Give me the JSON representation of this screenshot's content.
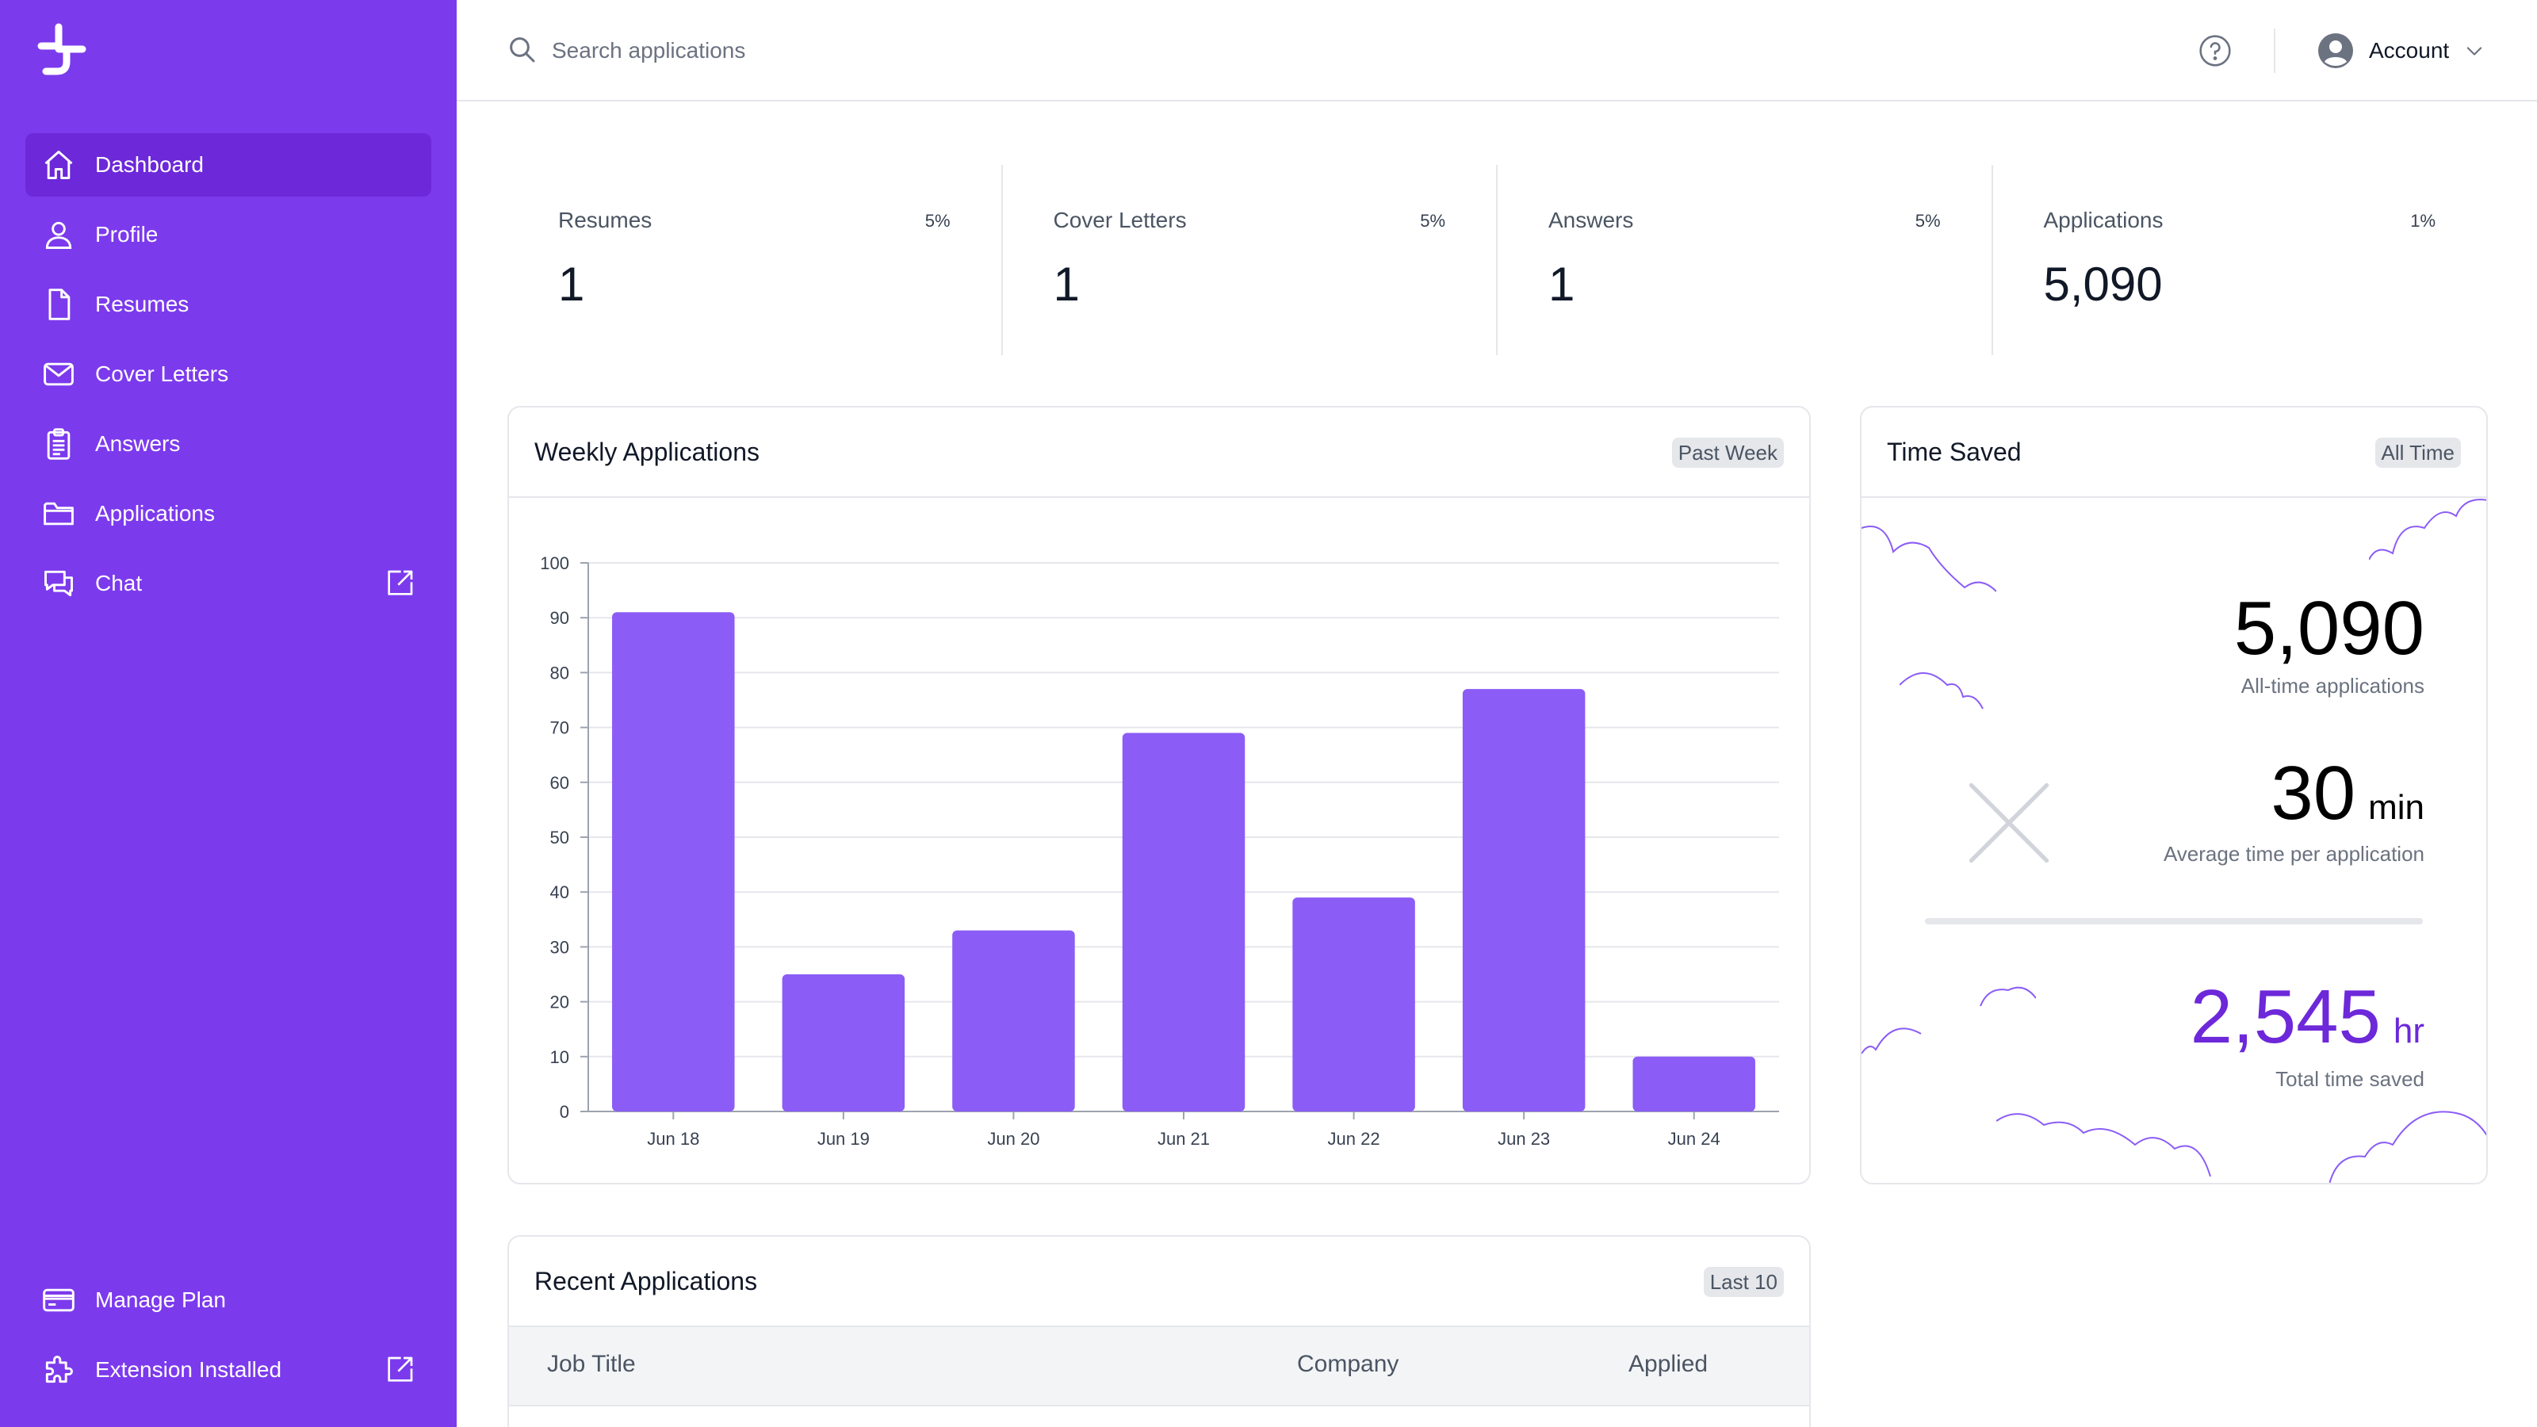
{
  "sidebar": {
    "brand_color": "#7c3aed",
    "active_color": "#6d28d9",
    "items": [
      {
        "label": "Dashboard",
        "icon": "home-icon",
        "active": true
      },
      {
        "label": "Profile",
        "icon": "user-icon"
      },
      {
        "label": "Resumes",
        "icon": "document-icon"
      },
      {
        "label": "Cover Letters",
        "icon": "mail-icon"
      },
      {
        "label": "Answers",
        "icon": "clipboard-icon"
      },
      {
        "label": "Applications",
        "icon": "folder-icon"
      },
      {
        "label": "Chat",
        "icon": "chat-icon",
        "external": true
      }
    ],
    "bottom_items": [
      {
        "label": "Manage Plan",
        "icon": "credit-card-icon"
      },
      {
        "label": "Extension Installed",
        "icon": "puzzle-icon",
        "external": true
      }
    ]
  },
  "topbar": {
    "search_placeholder": "Search applications",
    "account_label": "Account"
  },
  "stats": [
    {
      "label": "Resumes",
      "percent": "5%",
      "value": "1"
    },
    {
      "label": "Cover Letters",
      "percent": "5%",
      "value": "1"
    },
    {
      "label": "Answers",
      "percent": "5%",
      "value": "1"
    },
    {
      "label": "Applications",
      "percent": "1%",
      "value": "5,090"
    }
  ],
  "weekly": {
    "title": "Weekly Applications",
    "badge": "Past Week",
    "bar_color": "#8b5cf6"
  },
  "chart_data": {
    "type": "bar",
    "categories": [
      "Jun 18",
      "Jun 19",
      "Jun 20",
      "Jun 21",
      "Jun 22",
      "Jun 23",
      "Jun 24"
    ],
    "values": [
      91,
      25,
      33,
      69,
      39,
      77,
      10
    ],
    "ylim": [
      0,
      100
    ],
    "yticks": [
      0,
      10,
      20,
      30,
      40,
      50,
      60,
      70,
      80,
      90,
      100
    ],
    "grid": true
  },
  "time_saved": {
    "title": "Time Saved",
    "badge": "All Time",
    "applications_value": "5,090",
    "applications_label": "All-time applications",
    "avg_value": "30",
    "avg_unit": "min",
    "avg_label": "Average time per application",
    "total_value": "2,545",
    "total_unit": "hr",
    "total_label": "Total time saved",
    "accent_color": "#6d28d9"
  },
  "recent": {
    "title": "Recent Applications",
    "badge": "Last 10",
    "columns": [
      "Job Title",
      "Company",
      "Applied"
    ]
  }
}
